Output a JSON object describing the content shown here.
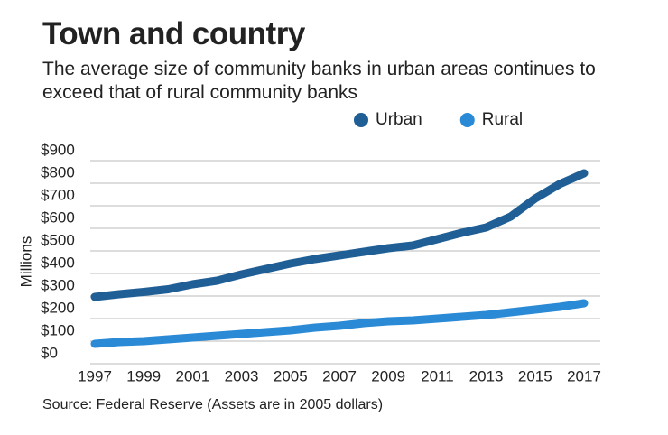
{
  "chart_data": {
    "type": "line",
    "title": "Town and country",
    "subtitle": "The average size of community banks in urban areas continues to exceed that of rural community banks",
    "y_label": "Millions",
    "source": "Source: Federal Reserve (Assets are in 2005 dollars)",
    "x": [
      1997,
      1998,
      1999,
      2000,
      2001,
      2002,
      2003,
      2004,
      2005,
      2006,
      2007,
      2008,
      2009,
      2010,
      2011,
      2012,
      2013,
      2014,
      2015,
      2016,
      2017
    ],
    "series": [
      {
        "name": "Urban",
        "color": "#1f5f96",
        "values": [
          296,
          308,
          318,
          330,
          352,
          368,
          396,
          420,
          444,
          464,
          480,
          496,
          512,
          524,
          552,
          580,
          604,
          652,
          732,
          796,
          844
        ]
      },
      {
        "name": "Rural",
        "color": "#2a8ad6",
        "values": [
          88,
          96,
          100,
          108,
          116,
          124,
          132,
          140,
          148,
          160,
          168,
          180,
          188,
          192,
          200,
          208,
          216,
          228,
          240,
          252,
          268
        ]
      }
    ],
    "xlim": [
      1997,
      2017
    ],
    "xticks": [
      1997,
      1999,
      2001,
      2003,
      2005,
      2007,
      2009,
      2011,
      2013,
      2015,
      2017
    ],
    "ylim": [
      0,
      900
    ],
    "yticks": [
      {
        "value": 0,
        "label": "$0"
      },
      {
        "value": 100,
        "label": "$100"
      },
      {
        "value": 200,
        "label": "$200"
      },
      {
        "value": 300,
        "label": "$300"
      },
      {
        "value": 400,
        "label": "$400"
      },
      {
        "value": 500,
        "label": "$500"
      },
      {
        "value": 600,
        "label": "$600"
      },
      {
        "value": 700,
        "label": "$700"
      },
      {
        "value": 800,
        "label": "$800"
      },
      {
        "value": 900,
        "label": "$900"
      }
    ],
    "grid": true,
    "legend": "top-right"
  }
}
